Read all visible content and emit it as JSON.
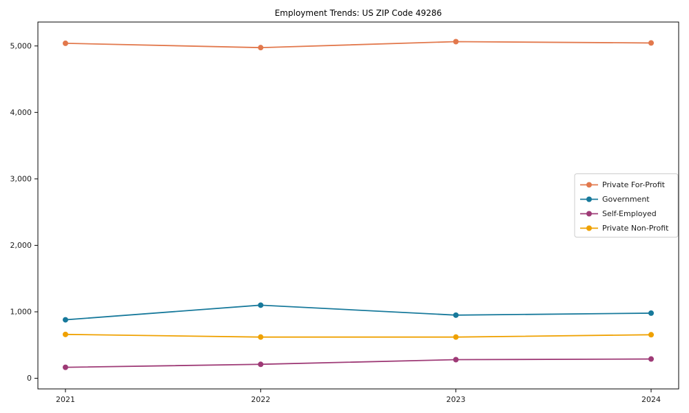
{
  "chart_data": {
    "type": "line",
    "title": "Employment Trends: US ZIP Code 49286",
    "x": [
      2021,
      2022,
      2023,
      2024
    ],
    "x_tick_labels": [
      "2021",
      "2022",
      "2023",
      "2024"
    ],
    "series": [
      {
        "name": "Private For-Profit",
        "color": "#e2784c",
        "values": [
          5040,
          4975,
          5065,
          5045
        ]
      },
      {
        "name": "Government",
        "color": "#17799b",
        "values": [
          880,
          1100,
          950,
          980
        ]
      },
      {
        "name": "Self-Employed",
        "color": "#9e3a76",
        "values": [
          165,
          210,
          280,
          290
        ]
      },
      {
        "name": "Private Non-Profit",
        "color": "#efa100",
        "values": [
          660,
          620,
          620,
          655
        ]
      }
    ],
    "ylim": [
      -160,
      5360
    ],
    "yticks": [
      0,
      1000,
      2000,
      3000,
      4000,
      5000
    ],
    "ytick_labels": [
      "0",
      "1,000",
      "2,000",
      "3,000",
      "4,000",
      "5,000"
    ],
    "xlabel": "",
    "ylabel": "",
    "grid": false,
    "marker": "circle",
    "legend": {
      "position": "center right",
      "border_color": "#cccccc",
      "background": "#ffffff"
    },
    "axis_color": "#000000",
    "tick_label_color": "#1a1a1a"
  }
}
